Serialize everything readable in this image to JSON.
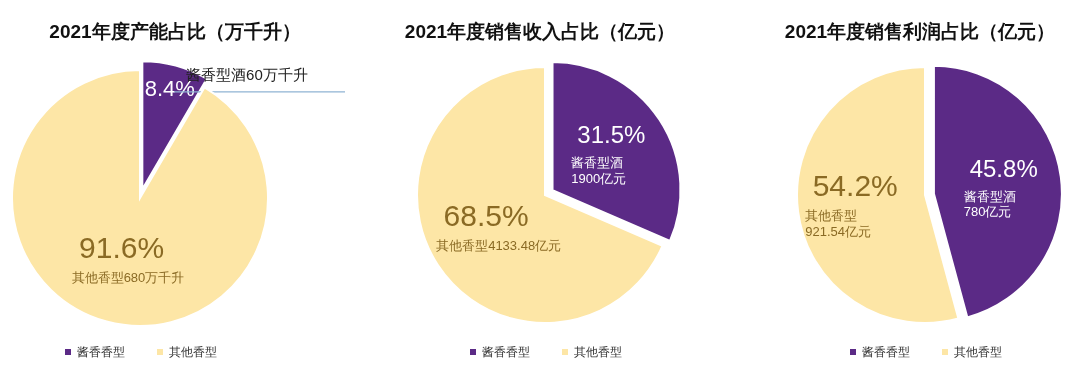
{
  "chart_data": [
    {
      "type": "pie",
      "title": "2021年度产能占比（万千升）",
      "categories": [
        "酱香香型",
        "其他香型"
      ],
      "values": [
        8.4,
        91.6
      ],
      "colors": [
        "#5b2a86",
        "#fde6a6"
      ],
      "value_labels": [
        "8.4%",
        "91.6%"
      ],
      "annotations": [
        {
          "text": "酱香型酒60万千升",
          "x": "酱香香型"
        },
        {
          "text": "其他香型680万千升",
          "x": "其他香型"
        }
      ],
      "legend": "bottom"
    },
    {
      "type": "pie",
      "title": "2021年度销售收入占比（亿元）",
      "categories": [
        "酱香香型",
        "其他香型"
      ],
      "values": [
        31.5,
        68.5
      ],
      "colors": [
        "#5b2a86",
        "#fde6a6"
      ],
      "value_labels": [
        "31.5%",
        "68.5%"
      ],
      "annotations": [
        {
          "text": "酱香型酒\n1900亿元",
          "x": "酱香香型"
        },
        {
          "text": "其他香型4133.48亿元",
          "x": "其他香型"
        }
      ],
      "legend": "bottom"
    },
    {
      "type": "pie",
      "title": "2021年度销售利润占比（亿元）",
      "categories": [
        "酱香香型",
        "其他香型"
      ],
      "values": [
        45.8,
        54.2
      ],
      "colors": [
        "#5b2a86",
        "#fde6a6"
      ],
      "value_labels": [
        "45.8%",
        "54.2%"
      ],
      "annotations": [
        {
          "text": "酱香型酒\n780亿元",
          "x": "酱香香型"
        },
        {
          "text": "其他香型\n921.54亿元",
          "x": "其他香型"
        }
      ],
      "legend": "bottom"
    }
  ]
}
